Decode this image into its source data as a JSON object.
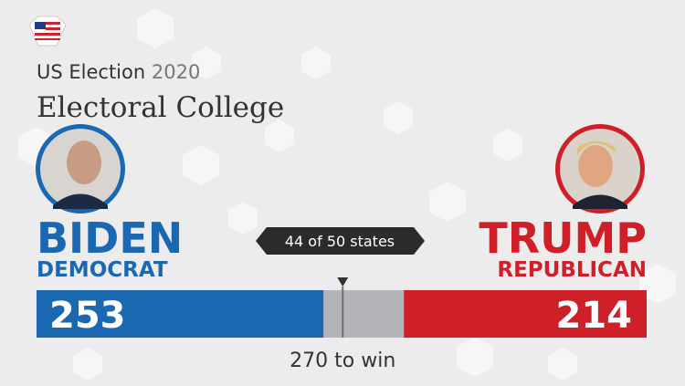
{
  "chart_data": {
    "type": "tally",
    "eyebrow": "US Election",
    "year": "2020",
    "title": "Electoral College",
    "subtitle": "44 of 50 states",
    "categories": [
      "BIDEN",
      "TRUMP"
    ],
    "parties": [
      "DEMOCRAT",
      "REPUBLICAN"
    ],
    "values": [
      253,
      214
    ],
    "colors": [
      "#1a68b2",
      "#cf1f28"
    ],
    "xlim": [
      0,
      538
    ],
    "threshold": {
      "value": 270,
      "label": "270 to win"
    }
  }
}
